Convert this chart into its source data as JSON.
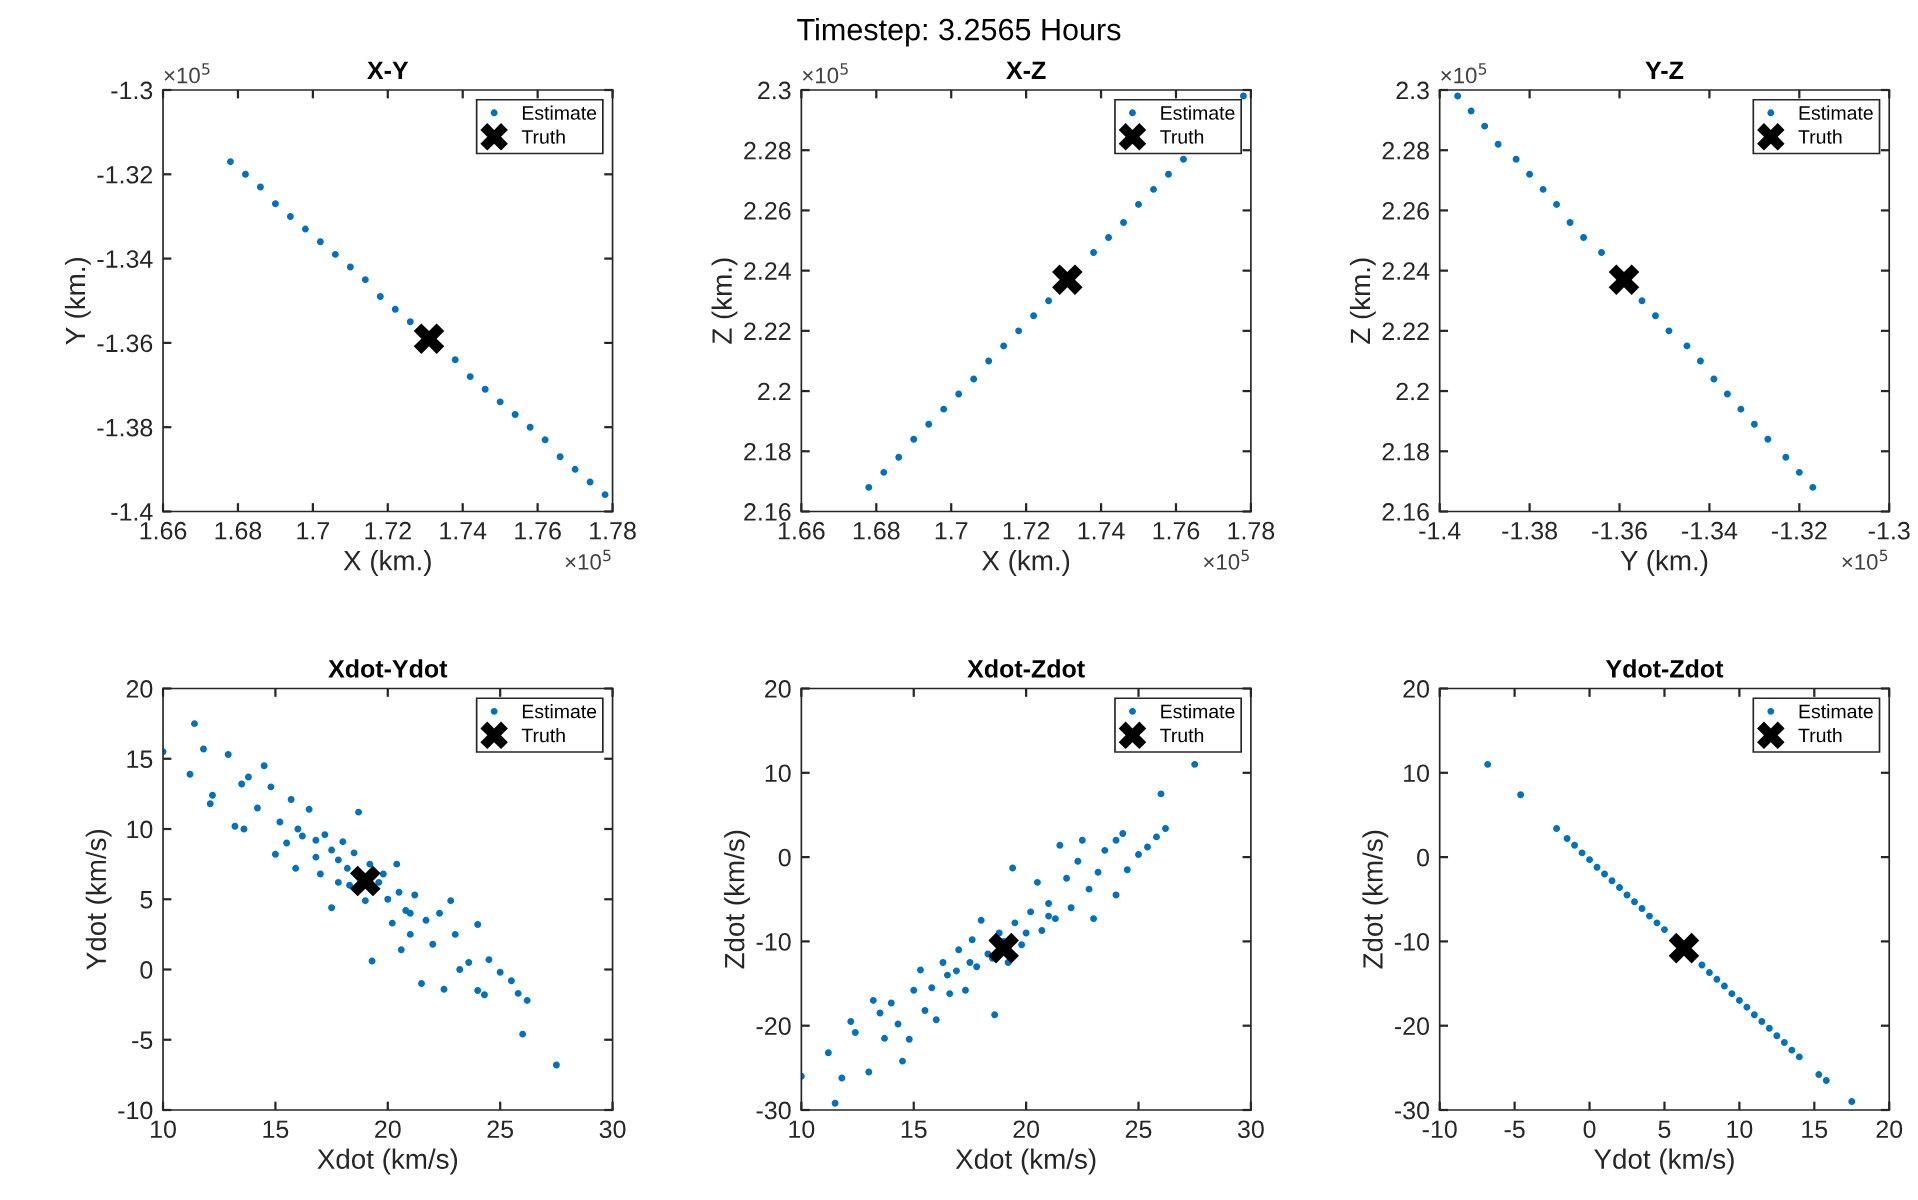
{
  "chart_data": [
    {
      "type": "scatter",
      "title": "X-Y",
      "xlabel": "X (km.)",
      "ylabel": "Y (km.)",
      "annotations": [
        "Timestep: 3.2565 Hours",
        "×10$^{5}$",
        "×10$^{5}$"
      ],
      "xlim": [
        1.66,
        1.78
      ],
      "xticks": [
        1.66,
        1.68,
        1.7,
        1.72,
        1.74,
        1.76,
        1.78
      ],
      "ylim": [
        -1.4,
        -1.3
      ],
      "yticks": [
        -1.4,
        -1.38,
        -1.36,
        -1.34,
        -1.32,
        -1.3
      ],
      "legend": "top right",
      "series": [
        {
          "name": "Estimate",
          "color": "#0072bd",
          "marker": "circle",
          "x": [
            1.678,
            1.682,
            1.686,
            1.69,
            1.694,
            1.698,
            1.702,
            1.706,
            1.71,
            1.714,
            1.718,
            1.722,
            1.726,
            1.738,
            1.742,
            1.746,
            1.75,
            1.754,
            1.758,
            1.762,
            1.766,
            1.77,
            1.774,
            1.778
          ],
          "values": [
            -1.317,
            -1.32,
            -1.323,
            -1.327,
            -1.33,
            -1.333,
            -1.336,
            -1.339,
            -1.342,
            -1.345,
            -1.349,
            -1.352,
            -1.355,
            -1.364,
            -1.368,
            -1.371,
            -1.374,
            -1.377,
            -1.38,
            -1.383,
            -1.387,
            -1.39,
            -1.393,
            -1.396
          ]
        },
        {
          "name": "Truth",
          "color": "#000000",
          "marker": "cross",
          "x": [
            1.731
          ],
          "values": [
            -1.359
          ]
        }
      ]
    },
    {
      "type": "scatter",
      "title": "X-Z",
      "xlabel": "X (km.)",
      "ylabel": "Z (km.)",
      "annotations": [
        "×10$^{5}$",
        "×10$^{5}$"
      ],
      "xlim": [
        1.66,
        1.78
      ],
      "xticks": [
        1.66,
        1.68,
        1.7,
        1.72,
        1.74,
        1.76,
        1.78
      ],
      "ylim": [
        2.16,
        2.3
      ],
      "yticks": [
        2.16,
        2.18,
        2.2,
        2.22,
        2.24,
        2.26,
        2.28,
        2.3
      ],
      "legend": "top right",
      "series": [
        {
          "name": "Estimate",
          "color": "#0072bd",
          "marker": "circle",
          "x": [
            1.678,
            1.682,
            1.686,
            1.69,
            1.694,
            1.698,
            1.702,
            1.706,
            1.71,
            1.714,
            1.718,
            1.722,
            1.726,
            1.738,
            1.742,
            1.746,
            1.75,
            1.754,
            1.758,
            1.762,
            1.778
          ],
          "values": [
            2.168,
            2.173,
            2.178,
            2.184,
            2.189,
            2.194,
            2.199,
            2.204,
            2.21,
            2.215,
            2.22,
            2.225,
            2.23,
            2.246,
            2.251,
            2.256,
            2.262,
            2.267,
            2.272,
            2.277,
            2.298
          ]
        },
        {
          "name": "Truth",
          "color": "#000000",
          "marker": "cross",
          "x": [
            1.731
          ],
          "values": [
            2.237
          ]
        }
      ]
    },
    {
      "type": "scatter",
      "title": "Y-Z",
      "xlabel": "Y (km.)",
      "ylabel": "Z (km.)",
      "annotations": [
        "×10$^{5}$",
        "×10$^{5}$"
      ],
      "xlim": [
        -1.4,
        -1.3
      ],
      "xticks": [
        -1.4,
        -1.38,
        -1.36,
        -1.34,
        -1.32,
        -1.3
      ],
      "ylim": [
        2.16,
        2.3
      ],
      "yticks": [
        2.16,
        2.18,
        2.2,
        2.22,
        2.24,
        2.26,
        2.28,
        2.3
      ],
      "legend": "top right",
      "series": [
        {
          "name": "Estimate",
          "color": "#0072bd",
          "marker": "circle",
          "x": [
            -1.317,
            -1.32,
            -1.323,
            -1.327,
            -1.33,
            -1.333,
            -1.336,
            -1.339,
            -1.342,
            -1.345,
            -1.349,
            -1.352,
            -1.355,
            -1.364,
            -1.368,
            -1.371,
            -1.374,
            -1.377,
            -1.38,
            -1.383,
            -1.387,
            -1.39,
            -1.393,
            -1.396
          ],
          "values": [
            2.168,
            2.173,
            2.178,
            2.184,
            2.189,
            2.194,
            2.199,
            2.204,
            2.21,
            2.215,
            2.22,
            2.225,
            2.23,
            2.246,
            2.251,
            2.256,
            2.262,
            2.267,
            2.272,
            2.277,
            2.282,
            2.288,
            2.293,
            2.298
          ]
        },
        {
          "name": "Truth",
          "color": "#000000",
          "marker": "cross",
          "x": [
            -1.359
          ],
          "values": [
            2.237
          ]
        }
      ]
    },
    {
      "type": "scatter",
      "title": "Xdot-Ydot",
      "xlabel": "Xdot (km/s)",
      "ylabel": "Ydot (km/s)",
      "xlim": [
        10,
        30
      ],
      "xticks": [
        10,
        15,
        20,
        25,
        30
      ],
      "ylim": [
        -10,
        20
      ],
      "yticks": [
        -10,
        -5,
        0,
        5,
        10,
        15,
        20
      ],
      "legend": "top right",
      "series": [
        {
          "name": "Estimate",
          "color": "#0072bd",
          "marker": "circle",
          "x": [
            10,
            11.2,
            11.4,
            11.8,
            12.1,
            12.2,
            12.9,
            13.2,
            13.5,
            13.6,
            13.8,
            14.2,
            14.5,
            14.8,
            15,
            15.2,
            15.5,
            15.7,
            15.9,
            16.2,
            16.5,
            16.8,
            17,
            17.2,
            17.5,
            17.8,
            18,
            18.3,
            18.5,
            18.7,
            19,
            19.3,
            19.2,
            19.6,
            20,
            20.2,
            20.4,
            20.6,
            20.8,
            21,
            21.2,
            21.5,
            21.7,
            22,
            22.3,
            22.5,
            22.8,
            23,
            23.2,
            23.6,
            24,
            24,
            24.3,
            24.5,
            25,
            25.5,
            25.8,
            26,
            26.2,
            27.5,
            16,
            17.5,
            18.2,
            19.8,
            20.5,
            21,
            16.8,
            17.8
          ],
          "values": [
            15.5,
            13.9,
            17.5,
            15.7,
            11.8,
            12.4,
            15.3,
            10.2,
            13.2,
            10,
            13.7,
            11.5,
            14.5,
            13,
            8.2,
            10.5,
            9,
            12.1,
            7.2,
            9.5,
            11.4,
            8,
            6.8,
            9.6,
            4.4,
            7.8,
            9.1,
            6,
            8.3,
            11.2,
            4.9,
            0.6,
            7.5,
            6.2,
            5,
            3.3,
            7.5,
            1.4,
            4.2,
            2.5,
            5.3,
            -1,
            3.5,
            1.8,
            4,
            -1.4,
            4.9,
            2.5,
            0,
            0.5,
            3.2,
            -1.5,
            -1.8,
            0.7,
            -0.2,
            -0.8,
            -1.7,
            -4.6,
            -2.2,
            -6.8,
            10,
            8.5,
            7.2,
            6.8,
            5.5,
            4,
            9.2,
            6.2
          ]
        },
        {
          "name": "Truth",
          "color": "#000000",
          "marker": "cross",
          "x": [
            19
          ],
          "values": [
            6.3
          ]
        }
      ]
    },
    {
      "type": "scatter",
      "title": "Xdot-Zdot",
      "xlabel": "Xdot (km/s)",
      "ylabel": "Zdot (km/s)",
      "xlim": [
        10,
        30
      ],
      "xticks": [
        10,
        15,
        20,
        25,
        30
      ],
      "ylim": [
        -30,
        20
      ],
      "yticks": [
        -30,
        -20,
        -10,
        0,
        10,
        20
      ],
      "legend": "top right",
      "series": [
        {
          "name": "Estimate",
          "color": "#0072bd",
          "marker": "circle",
          "x": [
            10,
            11.2,
            11.5,
            11.8,
            12.2,
            12.4,
            13,
            13.2,
            13.5,
            13.7,
            14,
            14.3,
            14.5,
            14.8,
            15,
            15.3,
            15.5,
            15.8,
            16,
            16.3,
            16.6,
            16.9,
            17,
            17.3,
            17.6,
            17.8,
            18,
            18.3,
            18.6,
            18.8,
            19.2,
            19.4,
            19.5,
            19.8,
            20.2,
            20.5,
            20.7,
            21,
            21.3,
            21.5,
            21.8,
            22,
            22.3,
            22.5,
            22.8,
            23,
            23.2,
            23.5,
            24,
            24,
            24.3,
            24.5,
            25,
            25.4,
            25.8,
            26,
            26.2,
            27.5,
            16.5,
            17.5,
            18.5,
            20,
            21,
            19
          ],
          "values": [
            -26,
            -23.2,
            -29.2,
            -26.2,
            -19.5,
            -20.8,
            -25.5,
            -17,
            -18.5,
            -21.5,
            -17.3,
            -19.8,
            -24.2,
            -21.6,
            -15.8,
            -13.4,
            -18.2,
            -15.5,
            -19.3,
            -12.5,
            -16.2,
            -13.5,
            -11,
            -15.8,
            -9.8,
            -13,
            -7.5,
            -11.5,
            -18.7,
            -9,
            -12.5,
            -1.3,
            -7.8,
            -10.4,
            -6.5,
            -3,
            -8.7,
            -5.5,
            -7.3,
            1.4,
            -2.5,
            -6,
            -0.5,
            2,
            -3.8,
            -7.3,
            -1.8,
            0.8,
            2,
            -4.5,
            2.8,
            -1.5,
            0.3,
            1.2,
            2.4,
            7.5,
            3.4,
            11,
            -14,
            -12.5,
            -12,
            -9,
            -7,
            -10
          ]
        },
        {
          "name": "Truth",
          "color": "#000000",
          "marker": "cross",
          "x": [
            19
          ],
          "values": [
            -10.8
          ]
        }
      ]
    },
    {
      "type": "scatter",
      "title": "Ydot-Zdot",
      "xlabel": "Ydot (km/s)",
      "ylabel": "Zdot (km/s)",
      "xlim": [
        -10,
        20
      ],
      "xticks": [
        -10,
        -5,
        0,
        5,
        10,
        15,
        20
      ],
      "ylim": [
        -30,
        20
      ],
      "yticks": [
        -30,
        -20,
        -10,
        0,
        10,
        20
      ],
      "legend": "top right",
      "series": [
        {
          "name": "Estimate",
          "color": "#0072bd",
          "marker": "circle",
          "x": [
            -6.8,
            -4.6,
            -2.2,
            -1.5,
            -1,
            -0.5,
            0,
            0.5,
            1,
            1.5,
            2,
            2.5,
            3,
            3.5,
            4,
            4.5,
            5,
            7.5,
            8,
            8.5,
            9,
            9.5,
            10,
            10.5,
            11,
            11.5,
            12,
            12.5,
            13,
            13.5,
            14,
            15.3,
            15.8,
            17.5
          ],
          "values": [
            11,
            7.4,
            3.4,
            2.2,
            1.4,
            0.5,
            -0.3,
            -1.2,
            -2,
            -2.8,
            -3.6,
            -4.5,
            -5.3,
            -6.1,
            -7,
            -7.8,
            -8.6,
            -12.8,
            -13.7,
            -14.5,
            -15.3,
            -16.2,
            -17,
            -17.8,
            -18.7,
            -19.5,
            -20.3,
            -21.2,
            -22,
            -22.9,
            -23.7,
            -25.8,
            -26.5,
            -29
          ]
        },
        {
          "name": "Truth",
          "color": "#000000",
          "marker": "cross",
          "x": [
            6.3
          ],
          "values": [
            -10.8
          ]
        }
      ]
    }
  ]
}
